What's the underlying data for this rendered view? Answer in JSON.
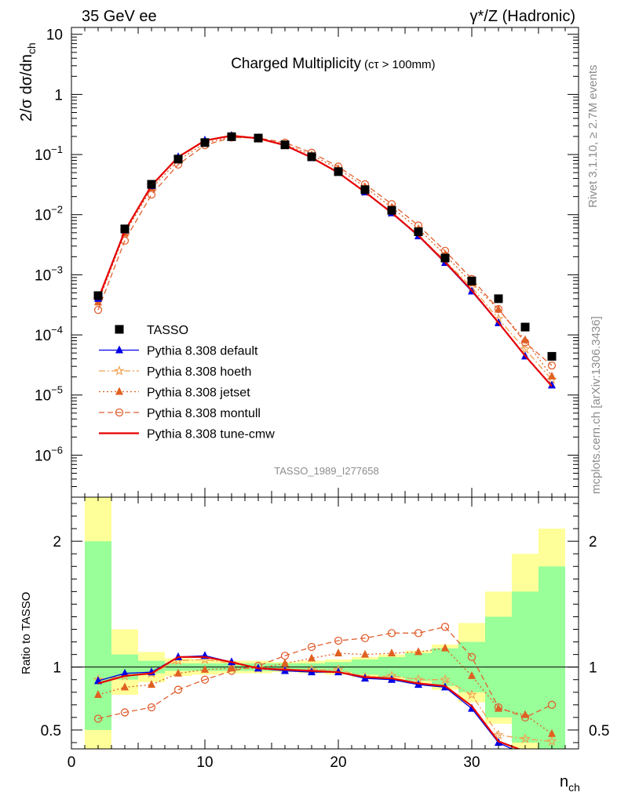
{
  "header": {
    "left": "35 GeV ee",
    "right": "γ*/Z (Hadronic)"
  },
  "side_labels": {
    "rivet": "Rivet 3.1.10, ≥ 2.7M events",
    "mcplots": "mcplots.cern.ch [arXiv:1306.3436]"
  },
  "chart_data": [
    {
      "type": "line",
      "title": "Charged Multiplicity",
      "title_note": "(cτ > 100mm)",
      "watermark": "TASSO_1989_I277658",
      "ylabel": "2/σ dσ/dn_ch",
      "yscale": "log",
      "ylim": [
        2e-07,
        13
      ],
      "xlim": [
        0,
        38
      ],
      "y_ticks": [
        {
          "v": 10,
          "m": "10",
          "e": ""
        },
        {
          "v": 1,
          "m": "1",
          "e": ""
        },
        {
          "v": 0.1,
          "m": "10",
          "e": "−1"
        },
        {
          "v": 0.01,
          "m": "10",
          "e": "−2"
        },
        {
          "v": 0.001,
          "m": "10",
          "e": "−3"
        },
        {
          "v": 0.0001,
          "m": "10",
          "e": "−4"
        },
        {
          "v": 1e-05,
          "m": "10",
          "e": "−5"
        },
        {
          "v": 1e-06,
          "m": "10",
          "e": "−6"
        }
      ],
      "legend_position": "bottom-left",
      "x": [
        2,
        4,
        6,
        8,
        10,
        12,
        14,
        16,
        18,
        20,
        22,
        24,
        26,
        28,
        30,
        32,
        34,
        36
      ],
      "series": [
        {
          "name": "TASSO",
          "color": "#000000",
          "marker": "square",
          "line": "none",
          "values": [
            0.00045,
            0.0058,
            0.032,
            0.084,
            0.158,
            0.198,
            0.188,
            0.145,
            0.092,
            0.052,
            0.026,
            0.0118,
            0.0052,
            0.0019,
            0.00079,
            0.0004,
            0.000135,
            4.4e-05
          ]
        },
        {
          "name": "Pythia 8.308 default",
          "color": "#0000e6",
          "marker": "triangle",
          "line": "solid",
          "values": [
            0.0004,
            0.0055,
            0.03,
            0.091,
            0.172,
            0.205,
            0.185,
            0.141,
            0.088,
            0.05,
            0.0236,
            0.0106,
            0.0044,
            0.00158,
            0.00053,
            0.000158,
            4.4e-05,
            1.45e-05
          ]
        },
        {
          "name": "Pythia 8.308 hoeth",
          "color": "#f0a050",
          "marker": "star",
          "line": "dashdot",
          "values": [
            0.0004,
            0.0054,
            0.0305,
            0.088,
            0.168,
            0.203,
            0.186,
            0.142,
            0.09,
            0.051,
            0.0238,
            0.0107,
            0.0046,
            0.0017,
            0.00062,
            0.000185,
            5.8e-05,
            1.8e-05
          ]
        },
        {
          "name": "Pythia 8.308 jetset",
          "color": "#e06020",
          "marker": "triangle",
          "line": "dotted",
          "values": [
            0.00035,
            0.0049,
            0.0272,
            0.08,
            0.155,
            0.196,
            0.187,
            0.149,
            0.098,
            0.058,
            0.0288,
            0.0131,
            0.0058,
            0.00215,
            0.00073,
            0.000265,
            8.2e-05,
            2.05e-05
          ]
        },
        {
          "name": "Pythia 8.308 montull",
          "color": "#e06030",
          "marker": "circle",
          "line": "dashed",
          "values": [
            0.00026,
            0.0037,
            0.0216,
            0.068,
            0.143,
            0.192,
            0.189,
            0.158,
            0.107,
            0.063,
            0.032,
            0.015,
            0.0066,
            0.0025,
            0.00085,
            0.00027,
            7.5e-05,
            3.1e-05
          ]
        },
        {
          "name": "Pythia 8.308 tune-cmw",
          "color": "#e60000",
          "marker": "none",
          "line": "solid",
          "values": [
            0.00039,
            0.0054,
            0.0305,
            0.091,
            0.171,
            0.206,
            0.186,
            0.143,
            0.089,
            0.05,
            0.0238,
            0.0108,
            0.0045,
            0.00162,
            0.00055,
            0.00016,
            4.5e-05,
            1.4e-05
          ]
        }
      ]
    },
    {
      "type": "line",
      "ylabel": "Ratio to TASSO",
      "xlabel": "n_ch",
      "ylim": [
        0.35,
        2.35
      ],
      "xlim": [
        0,
        38
      ],
      "y_ticks": [
        0.5,
        1,
        2
      ],
      "x_ticks": [
        0,
        10,
        20,
        30
      ],
      "x": [
        2,
        4,
        6,
        8,
        10,
        12,
        14,
        16,
        18,
        20,
        22,
        24,
        26,
        28,
        30,
        32,
        34,
        36
      ],
      "band_edges": [
        1,
        3,
        5,
        7,
        9,
        11,
        13,
        15,
        17,
        19,
        21,
        23,
        25,
        27,
        29,
        31,
        33,
        35,
        37
      ],
      "band_inner": [
        [
          0.5,
          2.0
        ],
        [
          0.9,
          1.1
        ],
        [
          0.95,
          1.05
        ],
        [
          0.97,
          1.03
        ],
        [
          0.97,
          1.03
        ],
        [
          0.97,
          1.03
        ],
        [
          0.97,
          1.03
        ],
        [
          0.97,
          1.03
        ],
        [
          0.97,
          1.03
        ],
        [
          0.96,
          1.04
        ],
        [
          0.94,
          1.06
        ],
        [
          0.92,
          1.08
        ],
        [
          0.89,
          1.11
        ],
        [
          0.85,
          1.15
        ],
        [
          0.8,
          1.2
        ],
        [
          0.6,
          1.4
        ],
        [
          0.4,
          1.6
        ],
        [
          0.35,
          1.8
        ]
      ],
      "band_outer": [
        [
          0.35,
          2.35
        ],
        [
          0.78,
          1.3
        ],
        [
          0.88,
          1.12
        ],
        [
          0.93,
          1.07
        ],
        [
          0.94,
          1.06
        ],
        [
          0.95,
          1.05
        ],
        [
          0.95,
          1.05
        ],
        [
          0.96,
          1.04
        ],
        [
          0.95,
          1.05
        ],
        [
          0.94,
          1.06
        ],
        [
          0.92,
          1.08
        ],
        [
          0.9,
          1.1
        ],
        [
          0.87,
          1.13
        ],
        [
          0.82,
          1.18
        ],
        [
          0.72,
          1.35
        ],
        [
          0.55,
          1.6
        ],
        [
          0.35,
          1.9
        ],
        [
          0.35,
          2.1
        ]
      ],
      "series": [
        {
          "name": "Pythia 8.308 default",
          "values": [
            0.89,
            0.95,
            0.96,
            1.08,
            1.09,
            1.04,
            0.99,
            0.97,
            0.96,
            0.96,
            0.91,
            0.9,
            0.86,
            0.84,
            0.67,
            0.4,
            0.3,
            0.3
          ]
        },
        {
          "name": "Pythia 8.308 hoeth",
          "values": [
            0.9,
            0.93,
            0.95,
            1.05,
            1.06,
            1.03,
            0.99,
            0.98,
            0.98,
            0.98,
            0.92,
            0.93,
            0.9,
            0.9,
            0.78,
            0.46,
            0.43,
            0.41
          ]
        },
        {
          "name": "Pythia 8.308 jetset",
          "values": [
            0.78,
            0.84,
            0.86,
            0.95,
            0.98,
            0.99,
            0.99,
            1.03,
            1.07,
            1.11,
            1.1,
            1.11,
            1.12,
            1.15,
            0.93,
            0.67,
            0.62,
            0.47
          ]
        },
        {
          "name": "Pythia 8.308 montull",
          "values": [
            0.59,
            0.64,
            0.68,
            0.82,
            0.9,
            0.97,
            1.01,
            1.09,
            1.16,
            1.21,
            1.23,
            1.27,
            1.27,
            1.32,
            1.08,
            0.68,
            0.6,
            0.7
          ]
        },
        {
          "name": "Pythia 8.308 tune-cmw",
          "values": [
            0.87,
            0.93,
            0.95,
            1.08,
            1.08,
            1.04,
            0.99,
            0.98,
            0.97,
            0.96,
            0.92,
            0.91,
            0.87,
            0.85,
            0.69,
            0.41,
            0.33,
            0.32
          ]
        }
      ]
    }
  ]
}
